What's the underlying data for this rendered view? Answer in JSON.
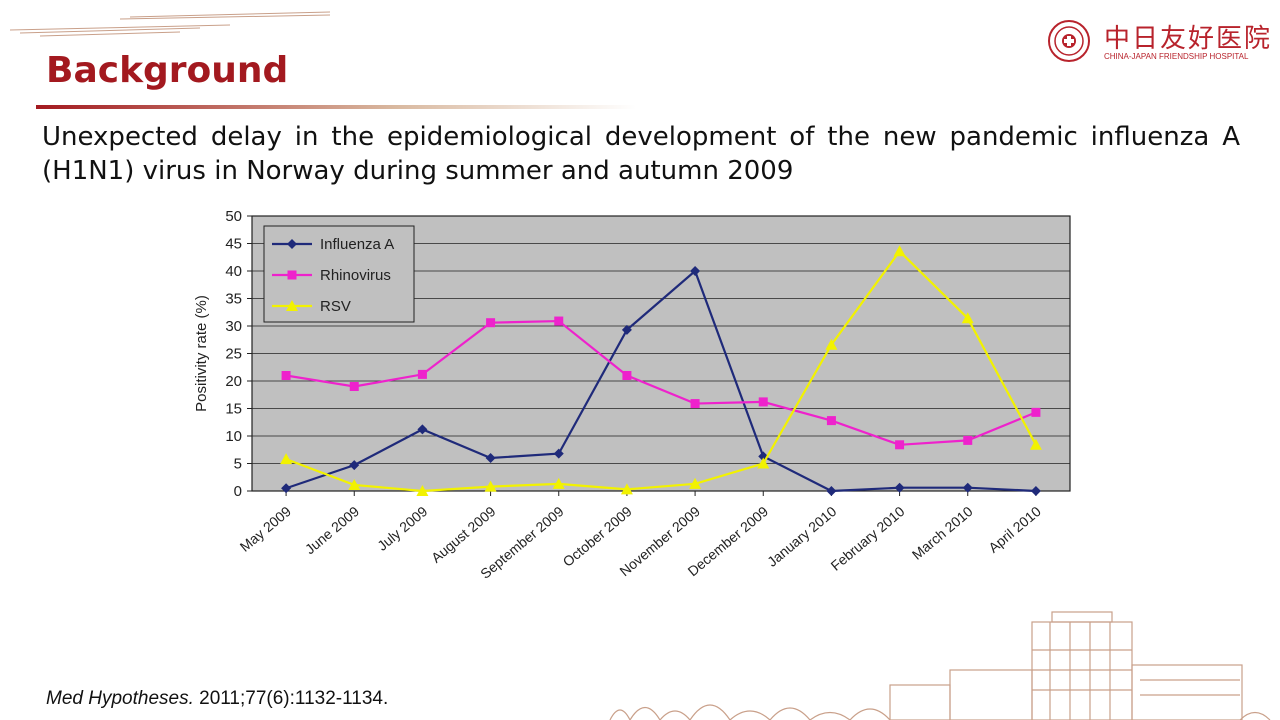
{
  "header": {
    "title": "Background",
    "logo_cn": "中日友好医院",
    "logo_en": "CHINA-JAPAN FRIENDSHIP HOSPITAL"
  },
  "subtitle": "Unexpected delay in the epidemiological development of the new pandemic influenza A (H1N1) virus in Norway during summer and autumn 2009",
  "citation": {
    "journal": "Med Hypotheses.",
    "details": "2011;77(6):1132-1134."
  },
  "colors": {
    "brand_red": "#a3191f",
    "plot_bg": "#c0c0c0",
    "influenza": "#1f2a7a",
    "rhinovirus": "#ee22cc",
    "rsv": "#f2f200"
  },
  "chart_data": {
    "type": "line",
    "title": "",
    "xlabel": "",
    "ylabel": "Positivity rate (%)",
    "ylim": [
      0,
      50
    ],
    "yticks": [
      0,
      5,
      10,
      15,
      20,
      25,
      30,
      35,
      40,
      45,
      50
    ],
    "grid": true,
    "legend_position": "top-left",
    "categories": [
      "May 2009",
      "June 2009",
      "July 2009",
      "August 2009",
      "September 2009",
      "October 2009",
      "November 2009",
      "December 2009",
      "January 2010",
      "February 2010",
      "March 2010",
      "April 2010"
    ],
    "series": [
      {
        "name": "Influenza A",
        "color": "#1f2a7a",
        "marker": "diamond",
        "values": [
          0.5,
          4.7,
          11.2,
          6.0,
          6.8,
          29.3,
          40.0,
          6.3,
          0.0,
          0.6,
          0.6,
          0.0
        ]
      },
      {
        "name": "Rhinovirus",
        "color": "#ee22cc",
        "marker": "square",
        "values": [
          21.0,
          19.0,
          21.2,
          30.6,
          30.9,
          21.0,
          15.9,
          16.2,
          12.8,
          8.4,
          9.2,
          14.3
        ]
      },
      {
        "name": "RSV",
        "color": "#f2f200",
        "marker": "triangle",
        "values": [
          5.8,
          1.1,
          0.0,
          0.8,
          1.3,
          0.3,
          1.3,
          5.0,
          26.6,
          43.6,
          31.4,
          8.4
        ]
      }
    ]
  }
}
